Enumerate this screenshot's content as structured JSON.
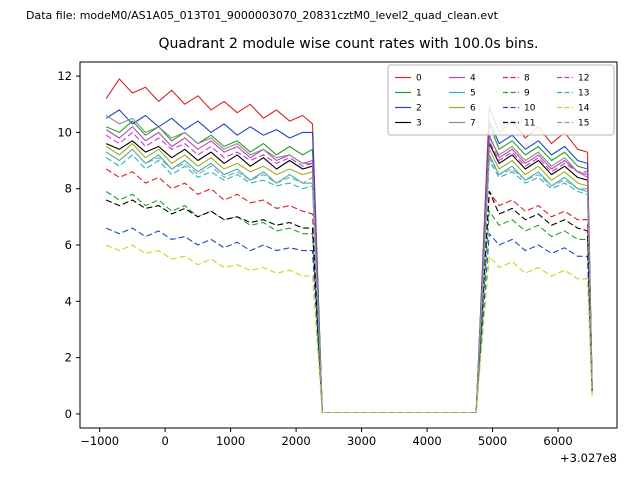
{
  "header": {
    "datafile_label": "Data file: modeM0/AS1A05_013T01_9000003070_20831cztM0_level2_quad_clean.evt"
  },
  "chart_data": {
    "type": "line",
    "title": "Quadrant 2 module wise count rates with 100.0s bins.",
    "xlabel": "",
    "ylabel": "",
    "x_offset_text": "+3.027e8",
    "xlim": [
      -1300,
      6900
    ],
    "ylim": [
      -0.5,
      12.5
    ],
    "xticks": [
      -1000,
      0,
      1000,
      2000,
      3000,
      4000,
      5000,
      6000
    ],
    "yticks": [
      0,
      2,
      4,
      6,
      8,
      10,
      12
    ],
    "grid": false,
    "legend": {
      "position": "upper right",
      "columns": 4
    },
    "x": [
      -900,
      -700,
      -500,
      -300,
      -100,
      100,
      300,
      500,
      700,
      900,
      1100,
      1300,
      1500,
      1700,
      1900,
      2100,
      2250,
      2400,
      3000,
      3500,
      4000,
      4500,
      4750,
      4850,
      4950,
      5100,
      5300,
      5500,
      5700,
      5900,
      6100,
      6300,
      6450,
      6520
    ],
    "series": [
      {
        "name": "0",
        "color": "#dd2222",
        "dash": false,
        "values": [
          11.2,
          11.9,
          11.4,
          11.6,
          11.1,
          11.5,
          11.0,
          11.3,
          10.8,
          11.1,
          10.7,
          11.0,
          10.5,
          10.8,
          10.4,
          10.6,
          10.3,
          0.05,
          0.05,
          0.05,
          0.05,
          0.05,
          0.05,
          5.5,
          10.9,
          10.0,
          10.4,
          9.8,
          10.2,
          9.6,
          10.0,
          9.4,
          9.3,
          1.1
        ]
      },
      {
        "name": "1",
        "color": "#22a022",
        "dash": false,
        "values": [
          10.2,
          10.0,
          10.4,
          9.9,
          10.2,
          9.7,
          10.0,
          9.6,
          9.9,
          9.5,
          9.7,
          9.3,
          9.6,
          9.2,
          9.5,
          9.2,
          9.4,
          0.05,
          0.05,
          0.05,
          0.05,
          0.05,
          0.05,
          5.2,
          10.3,
          9.4,
          9.7,
          9.2,
          9.5,
          9.0,
          9.3,
          8.8,
          8.7,
          1.0
        ]
      },
      {
        "name": "2",
        "color": "#2244cc",
        "dash": false,
        "values": [
          10.5,
          10.8,
          10.3,
          10.6,
          10.2,
          10.5,
          10.1,
          10.4,
          10.0,
          10.3,
          9.9,
          10.2,
          9.9,
          10.1,
          9.8,
          10.0,
          10.0,
          0.05,
          0.05,
          0.05,
          0.05,
          0.05,
          0.05,
          5.3,
          10.4,
          9.6,
          9.9,
          9.4,
          9.7,
          9.2,
          9.5,
          9.0,
          8.9,
          1.05
        ]
      },
      {
        "name": "3",
        "color": "#000000",
        "dash": false,
        "values": [
          9.6,
          9.4,
          9.7,
          9.3,
          9.5,
          9.1,
          9.4,
          9.0,
          9.3,
          8.9,
          9.2,
          8.8,
          9.1,
          8.7,
          9.0,
          8.7,
          8.8,
          0.05,
          0.05,
          0.05,
          0.05,
          0.05,
          0.05,
          4.9,
          9.6,
          8.9,
          9.2,
          8.7,
          9.0,
          8.5,
          8.8,
          8.4,
          8.3,
          0.95
        ]
      },
      {
        "name": "4",
        "color": "#bf40bf",
        "dash": false,
        "values": [
          10.1,
          9.8,
          10.2,
          9.7,
          10.0,
          9.5,
          9.8,
          9.4,
          9.7,
          9.3,
          9.5,
          9.1,
          9.4,
          9.0,
          9.2,
          8.9,
          9.0,
          0.05,
          0.05,
          0.05,
          0.05,
          0.05,
          0.05,
          5.0,
          9.9,
          9.1,
          9.4,
          8.9,
          9.2,
          8.7,
          9.0,
          8.6,
          8.5,
          1.0
        ]
      },
      {
        "name": "5",
        "color": "#20b8b8",
        "dash": false,
        "values": [
          9.3,
          9.0,
          9.4,
          8.9,
          9.2,
          8.7,
          9.0,
          8.6,
          8.9,
          8.5,
          8.7,
          8.3,
          8.6,
          8.2,
          8.5,
          8.2,
          8.2,
          0.05,
          0.05,
          0.05,
          0.05,
          0.05,
          0.05,
          4.6,
          9.2,
          8.5,
          8.8,
          8.3,
          8.6,
          8.1,
          8.4,
          8.0,
          7.9,
          0.9
        ]
      },
      {
        "name": "6",
        "color": "#a8a820",
        "dash": false,
        "values": [
          9.5,
          9.2,
          9.6,
          9.1,
          9.4,
          8.9,
          9.2,
          8.8,
          9.1,
          8.7,
          8.9,
          8.6,
          8.8,
          8.5,
          8.7,
          8.5,
          8.6,
          0.05,
          0.05,
          0.05,
          0.05,
          0.05,
          0.05,
          4.8,
          9.4,
          8.7,
          9.0,
          8.5,
          8.8,
          8.3,
          8.6,
          8.2,
          8.1,
          0.95
        ]
      },
      {
        "name": "7",
        "color": "#8c8c8c",
        "dash": false,
        "values": [
          10.6,
          10.3,
          10.5,
          10.0,
          10.2,
          9.8,
          10.0,
          9.6,
          9.8,
          9.4,
          9.6,
          9.2,
          9.4,
          9.1,
          9.2,
          8.9,
          8.9,
          0.05,
          0.05,
          0.05,
          0.05,
          0.05,
          0.05,
          5.0,
          9.8,
          9.2,
          9.5,
          9.0,
          9.3,
          8.8,
          9.1,
          8.6,
          8.4,
          1.0
        ]
      },
      {
        "name": "8",
        "color": "#dd2222",
        "dash": true,
        "values": [
          8.7,
          8.4,
          8.6,
          8.2,
          8.4,
          8.0,
          8.2,
          7.8,
          8.0,
          7.6,
          7.8,
          7.5,
          7.6,
          7.3,
          7.4,
          7.2,
          7.1,
          0.05,
          0.05,
          0.05,
          0.05,
          0.05,
          0.05,
          4.0,
          7.9,
          7.4,
          7.6,
          7.2,
          7.4,
          7.0,
          7.2,
          6.9,
          6.9,
          0.85
        ]
      },
      {
        "name": "9",
        "color": "#22a022",
        "dash": true,
        "values": [
          7.9,
          7.6,
          7.8,
          7.4,
          7.6,
          7.2,
          7.4,
          7.0,
          7.2,
          6.9,
          7.0,
          6.7,
          6.8,
          6.5,
          6.6,
          6.4,
          6.4,
          0.05,
          0.05,
          0.05,
          0.05,
          0.05,
          0.05,
          3.7,
          7.2,
          6.7,
          6.9,
          6.5,
          6.7,
          6.3,
          6.5,
          6.2,
          6.2,
          0.8
        ]
      },
      {
        "name": "10",
        "color": "#2244cc",
        "dash": true,
        "values": [
          6.6,
          6.4,
          6.6,
          6.3,
          6.5,
          6.2,
          6.3,
          6.0,
          6.2,
          5.9,
          6.1,
          5.8,
          6.0,
          5.8,
          5.9,
          5.8,
          5.8,
          0.05,
          0.05,
          0.05,
          0.05,
          0.05,
          0.05,
          3.3,
          6.4,
          6.0,
          6.2,
          5.8,
          6.0,
          5.7,
          5.9,
          5.6,
          5.6,
          0.7
        ]
      },
      {
        "name": "11",
        "color": "#000000",
        "dash": true,
        "values": [
          7.6,
          7.4,
          7.6,
          7.3,
          7.4,
          7.1,
          7.3,
          7.0,
          7.2,
          6.9,
          7.0,
          6.8,
          6.9,
          6.7,
          6.8,
          6.6,
          6.6,
          0.05,
          0.05,
          0.05,
          0.05,
          0.05,
          0.05,
          4.1,
          7.9,
          7.1,
          7.3,
          6.9,
          7.1,
          6.7,
          6.9,
          6.6,
          6.5,
          0.8
        ]
      },
      {
        "name": "12",
        "color": "#bf40bf",
        "dash": true,
        "values": [
          9.9,
          9.6,
          10.0,
          9.5,
          9.8,
          9.4,
          9.6,
          9.2,
          9.5,
          9.1,
          9.3,
          9.0,
          9.2,
          8.9,
          9.1,
          8.8,
          8.9,
          0.05,
          0.05,
          0.05,
          0.05,
          0.05,
          0.05,
          5.0,
          9.7,
          9.0,
          9.3,
          8.8,
          9.1,
          8.6,
          8.9,
          8.6,
          8.6,
          1.0
        ]
      },
      {
        "name": "13",
        "color": "#20b8b8",
        "dash": true,
        "values": [
          9.1,
          8.8,
          9.2,
          8.7,
          9.0,
          8.5,
          8.8,
          8.4,
          8.6,
          8.3,
          8.5,
          8.2,
          8.3,
          8.1,
          8.2,
          8.0,
          8.1,
          0.05,
          0.05,
          0.05,
          0.05,
          0.05,
          0.05,
          4.5,
          9.0,
          8.4,
          8.6,
          8.2,
          8.4,
          8.0,
          8.2,
          7.9,
          7.8,
          0.9
        ]
      },
      {
        "name": "14",
        "color": "#cfcf20",
        "dash": true,
        "values": [
          6.0,
          5.8,
          6.0,
          5.7,
          5.8,
          5.5,
          5.6,
          5.3,
          5.5,
          5.2,
          5.3,
          5.1,
          5.2,
          5.0,
          5.1,
          4.9,
          4.9,
          0.05,
          0.05,
          0.05,
          0.05,
          0.05,
          0.05,
          2.9,
          5.6,
          5.2,
          5.4,
          5.0,
          5.2,
          4.9,
          5.1,
          4.8,
          4.8,
          0.65
        ]
      },
      {
        "name": "15",
        "color": "#9a9a9a",
        "dash": true,
        "values": [
          9.3,
          9.0,
          9.4,
          8.9,
          9.1,
          8.7,
          8.9,
          8.5,
          8.8,
          8.4,
          8.6,
          8.3,
          8.5,
          8.2,
          8.4,
          8.2,
          8.4,
          0.05,
          0.05,
          0.05,
          0.05,
          0.05,
          0.05,
          4.7,
          9.1,
          8.5,
          8.7,
          8.3,
          8.5,
          8.1,
          8.3,
          8.0,
          8.0,
          0.95
        ]
      }
    ]
  }
}
